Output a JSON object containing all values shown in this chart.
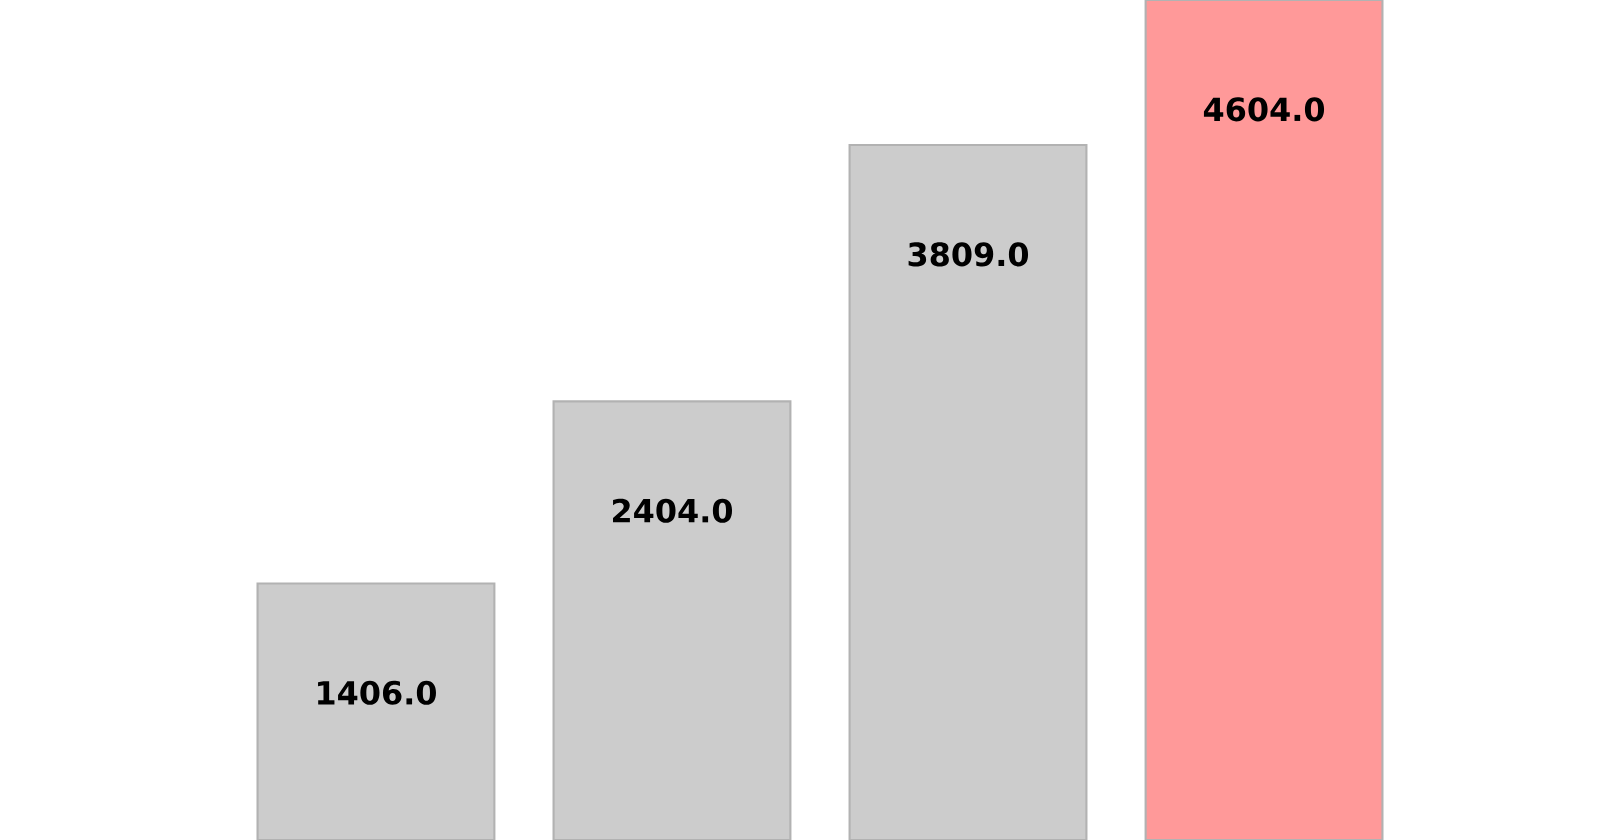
{
  "chart_data": {
    "type": "bar",
    "categories": [
      null,
      null,
      null,
      null
    ],
    "values": [
      1406,
      2404,
      3809,
      4604
    ],
    "colors": [
      "#cccccc",
      "#cccccc",
      "#cccccc",
      "#ff9999"
    ],
    "value_labels": [
      "1406.0",
      "2404.0",
      "3809.0",
      "4604.0"
    ]
  }
}
